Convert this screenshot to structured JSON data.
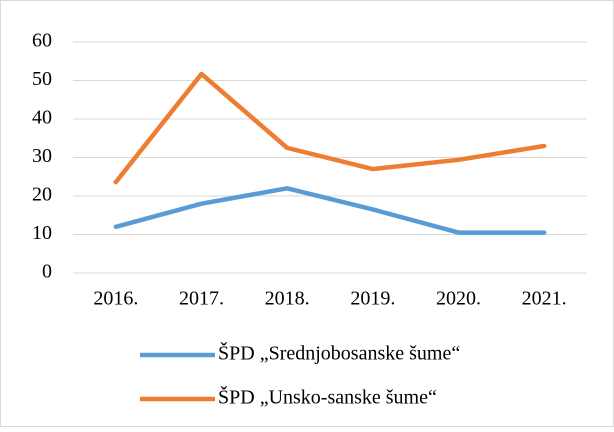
{
  "chart_data": {
    "type": "line",
    "categories": [
      "2016.",
      "2017.",
      "2018.",
      "2019.",
      "2020.",
      "2021."
    ],
    "series": [
      {
        "name": "ŠPD „Srednjobosanske šume“",
        "color": "#5b9bd5",
        "values": [
          12,
          18,
          22,
          16.5,
          10.5,
          10.5
        ]
      },
      {
        "name": "ŠPD „Unsko-sanske šume“",
        "color": "#ed7d31",
        "values": [
          23.6,
          51.7,
          32.5,
          27,
          29.4,
          33
        ]
      }
    ],
    "ylim": [
      0,
      60
    ],
    "yticks": [
      0,
      10,
      20,
      30,
      40,
      50,
      60
    ],
    "grid": true,
    "legend": "bottom"
  }
}
